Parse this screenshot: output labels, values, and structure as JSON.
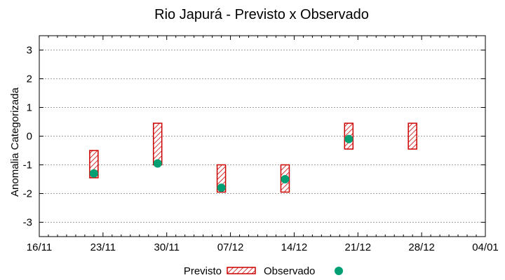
{
  "chart_data": {
    "type": "range-bar-with-points",
    "title": "Rio Japurá - Previsto x Observado",
    "xlabel": "",
    "ylabel": "Anomalia Categorizada",
    "x_tick_labels": [
      "16/11",
      "23/11",
      "30/11",
      "07/12",
      "14/12",
      "21/12",
      "28/12",
      "04/01"
    ],
    "x_range_days": [
      0,
      49
    ],
    "ylim": [
      -3.5,
      3.5
    ],
    "y_ticks": [
      -3,
      -2,
      -1,
      0,
      1,
      2,
      3
    ],
    "y_tick_labels": [
      "-3",
      "-2",
      "-1",
      "0",
      "1",
      "2",
      "3"
    ],
    "grid": true,
    "legend_position": "bottom-center",
    "series": [
      {
        "name": "Previsto",
        "kind": "range",
        "color": "#cc0000",
        "points": [
          {
            "x_day": 6,
            "low": -1.45,
            "high": -0.5
          },
          {
            "x_day": 13,
            "low": -1.0,
            "high": 0.45
          },
          {
            "x_day": 20,
            "low": -1.95,
            "high": -1.0
          },
          {
            "x_day": 27,
            "low": -1.95,
            "high": -1.0
          },
          {
            "x_day": 34,
            "low": -0.45,
            "high": 0.45
          },
          {
            "x_day": 41,
            "low": -0.45,
            "high": 0.45
          }
        ]
      },
      {
        "name": "Observado",
        "kind": "point",
        "color": "#009e73",
        "points": [
          {
            "x_day": 6,
            "value": -1.3
          },
          {
            "x_day": 13,
            "value": -0.95
          },
          {
            "x_day": 20,
            "value": -1.8
          },
          {
            "x_day": 27,
            "value": -1.5
          },
          {
            "x_day": 34,
            "value": -0.1
          }
        ]
      }
    ]
  }
}
